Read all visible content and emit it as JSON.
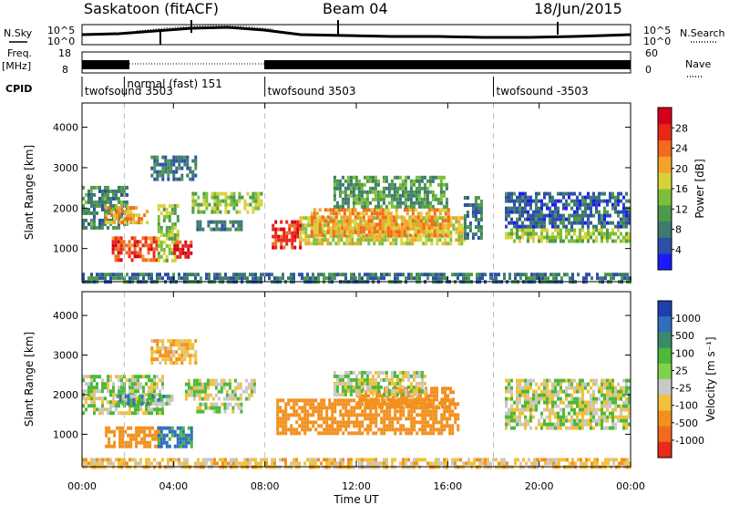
{
  "header": {
    "station": "Saskatoon (fitACF)",
    "beam": "Beam 04",
    "date": "18/Jun/2015"
  },
  "strip_labels": {
    "nsky": "N.Sky",
    "nsky_top": "10^5",
    "nsky_bottom": "10^0",
    "freq": "Freq.",
    "freq_unit": "[MHz]",
    "freq_top": "18",
    "freq_bottom": "8",
    "nsearch": "N.Search",
    "nsearch_top": "10^5",
    "nsearch_bottom": "10^0",
    "nave": "Nave",
    "nave_top": "60",
    "nave_bottom": "0",
    "cpid": "CPID"
  },
  "cpid_segments": [
    {
      "label": "twofsound 3503",
      "start_h": 0.0
    },
    {
      "label": "normal (fast) 151",
      "start_h": 1.85
    },
    {
      "label": "twofsound 3503",
      "start_h": 8.0
    },
    {
      "label": "twofsound -3503",
      "start_h": 18.0
    }
  ],
  "dashed_times_h": [
    1.85,
    8.0,
    18.0
  ],
  "chart_data": [
    {
      "type": "heatmap",
      "title": "",
      "xlabel": "Time UT",
      "ylabel": "Slant Range [km]",
      "x_range_h": [
        0,
        24
      ],
      "x_ticks": [
        "00:00",
        "04:00",
        "08:00",
        "12:00",
        "16:00",
        "20:00",
        "00:00"
      ],
      "ylim": [
        180,
        4600
      ],
      "y_ticks": [
        1000,
        2000,
        3000,
        4000
      ],
      "colorbar": {
        "label": "Power [dB]",
        "ticks": [
          "4",
          "8",
          "12",
          "16",
          "20",
          "24",
          "28"
        ],
        "range": [
          0,
          30
        ],
        "colors": [
          "#1a1aff",
          "#2e4ea8",
          "#3d7a6f",
          "#4f9a4a",
          "#7cbf3a",
          "#d8d23a",
          "#f4a32a",
          "#f26a1d",
          "#e8261a",
          "#d4001a"
        ]
      },
      "echo_regions": [
        {
          "t0": 0.0,
          "t1": 2.0,
          "r0": 1500,
          "r1": 2550,
          "v": 9
        },
        {
          "t0": 1.0,
          "t1": 2.8,
          "r0": 1650,
          "r1": 2050,
          "v": 20
        },
        {
          "t0": 1.3,
          "t1": 3.3,
          "r0": 700,
          "r1": 1300,
          "v": 24
        },
        {
          "t0": 3.3,
          "t1": 4.2,
          "r0": 700,
          "r1": 2100,
          "v": 14
        },
        {
          "t0": 4.0,
          "t1": 4.8,
          "r0": 800,
          "r1": 1200,
          "v": 27
        },
        {
          "t0": 4.8,
          "t1": 7.8,
          "r0": 1900,
          "r1": 2400,
          "v": 14
        },
        {
          "t0": 5.0,
          "t1": 7.0,
          "r0": 1500,
          "r1": 1700,
          "v": 8
        },
        {
          "t0": 8.3,
          "t1": 9.5,
          "r0": 1000,
          "r1": 1700,
          "v": 26
        },
        {
          "t0": 9.5,
          "t1": 16.7,
          "r0": 1100,
          "r1": 1800,
          "v": 16
        },
        {
          "t0": 10.0,
          "t1": 16.0,
          "r0": 1300,
          "r1": 2000,
          "v": 20
        },
        {
          "t0": 11.0,
          "t1": 16.0,
          "r0": 2000,
          "r1": 2800,
          "v": 10
        },
        {
          "t0": 16.7,
          "t1": 17.5,
          "r0": 1300,
          "r1": 2300,
          "v": 8
        },
        {
          "t0": 18.5,
          "t1": 24.0,
          "r0": 1200,
          "r1": 1500,
          "v": 14
        },
        {
          "t0": 18.5,
          "t1": 24.0,
          "r0": 1500,
          "r1": 2400,
          "v": 6
        },
        {
          "t0": 0.0,
          "t1": 24.0,
          "r0": 200,
          "r1": 400,
          "v": 7
        },
        {
          "t0": 3.0,
          "t1": 5.0,
          "r0": 2700,
          "r1": 3300,
          "v": 7
        }
      ]
    },
    {
      "type": "heatmap",
      "title": "",
      "xlabel": "Time UT",
      "ylabel": "Slant Range [km]",
      "x_range_h": [
        0,
        24
      ],
      "x_ticks": [
        "00:00",
        "04:00",
        "08:00",
        "12:00",
        "16:00",
        "20:00",
        "00:00"
      ],
      "ylim": [
        180,
        4600
      ],
      "y_ticks": [
        1000,
        2000,
        3000,
        4000
      ],
      "colorbar": {
        "label": "Velocity [m s⁻¹]",
        "ticks": [
          "1000",
          "500",
          "100",
          "25",
          "-25",
          "-100",
          "-500",
          "-1000"
        ],
        "range": [
          -1000,
          1000
        ],
        "colors": [
          "#1f3fae",
          "#2f6fc0",
          "#3a8a6a",
          "#4db83a",
          "#7fd34a",
          "#c8c8c8",
          "#f2c13a",
          "#f2901e",
          "#f26a1d",
          "#ea2a1a"
        ]
      },
      "echo_regions": [
        {
          "t0": 0.0,
          "t1": 3.5,
          "r0": 1500,
          "r1": 2500,
          "v": 10
        },
        {
          "t0": 1.0,
          "t1": 3.5,
          "r0": 700,
          "r1": 1200,
          "v": -300
        },
        {
          "t0": 1.5,
          "t1": 4.0,
          "r0": 1800,
          "r1": 2000,
          "v": 60
        },
        {
          "t0": 3.3,
          "t1": 4.8,
          "r0": 700,
          "r1": 1200,
          "v": 150
        },
        {
          "t0": 4.5,
          "t1": 7.5,
          "r0": 1900,
          "r1": 2400,
          "v": 5
        },
        {
          "t0": 5.0,
          "t1": 7.0,
          "r0": 1600,
          "r1": 1800,
          "v": 0
        },
        {
          "t0": 8.5,
          "t1": 16.5,
          "r0": 1000,
          "r1": 1900,
          "v": -400
        },
        {
          "t0": 12.0,
          "t1": 16.3,
          "r0": 1700,
          "r1": 2200,
          "v": -300
        },
        {
          "t0": 11.0,
          "t1": 15.0,
          "r0": 2000,
          "r1": 2600,
          "v": 5
        },
        {
          "t0": 18.5,
          "t1": 24.0,
          "r0": 1200,
          "r1": 2400,
          "v": 0
        },
        {
          "t0": 0.0,
          "t1": 24.0,
          "r0": 200,
          "r1": 400,
          "v": -60
        },
        {
          "t0": 3.0,
          "t1": 5.0,
          "r0": 2800,
          "r1": 3400,
          "v": -80
        }
      ]
    }
  ]
}
